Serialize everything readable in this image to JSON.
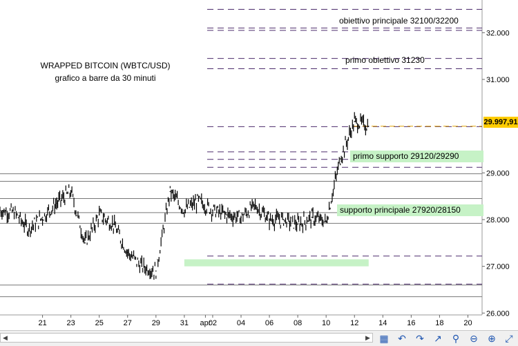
{
  "chart_title": {
    "line1": "WRAPPED BITCOIN (WBTC/USD)",
    "line2": "grafico a barre da 30 minuti"
  },
  "annotations": {
    "target_main": "obiettivo principale 32100/32200",
    "target_first": "primo obiettivo 31230",
    "support_first": "primo supporto 29120/29290",
    "support_main": "supporto principale 27920/28150"
  },
  "last_price_label": "29.997,91",
  "colors": {
    "price_bars": "#000000",
    "dashed_levels": "#4b2a6b",
    "support_highlight": "#c6f2c6",
    "last_price_badge": "#ffcc00",
    "last_price_line": "#e0a000"
  },
  "chart_data": {
    "type": "bar",
    "title": "WRAPPED BITCOIN (WBTC/USD)",
    "subtitle": "grafico a barre da 30 minuti",
    "y_axis": {
      "ticks": [
        "26.000",
        "27.000",
        "28.000",
        "29.000",
        "31.000",
        "32.000"
      ],
      "tick_values": [
        26000,
        27000,
        28000,
        29000,
        31000,
        32000
      ],
      "range": [
        25960,
        32700
      ]
    },
    "x_axis": {
      "tick_labels": [
        "21",
        "23",
        "25",
        "27",
        "29",
        "31",
        "apr",
        "02",
        "04",
        "06",
        "08",
        "10",
        "12",
        "14",
        "16",
        "18",
        "20"
      ],
      "date_range": [
        "2023-03-18",
        "2023-04-21"
      ]
    },
    "last_price": 29997.91,
    "series": [
      {
        "values": [
          {
            "x": "2023-03-18",
            "y": 28200
          },
          {
            "x": "2023-03-19",
            "y": 28150
          },
          {
            "x": "2023-03-20",
            "y": 27800
          },
          {
            "x": "2023-03-21",
            "y": 28050
          },
          {
            "x": "2023-03-22",
            "y": 28350
          },
          {
            "x": "2023-03-23",
            "y": 28600
          },
          {
            "x": "2023-03-24",
            "y": 27500
          },
          {
            "x": "2023-03-25",
            "y": 28100
          },
          {
            "x": "2023-03-26",
            "y": 27900
          },
          {
            "x": "2023-03-27",
            "y": 27300
          },
          {
            "x": "2023-03-28",
            "y": 27000
          },
          {
            "x": "2023-03-29",
            "y": 26900
          },
          {
            "x": "2023-03-30",
            "y": 28600
          },
          {
            "x": "2023-03-31",
            "y": 28200
          },
          {
            "x": "2023-04-01",
            "y": 28400
          },
          {
            "x": "2023-04-02",
            "y": 28200
          },
          {
            "x": "2023-04-03",
            "y": 28100
          },
          {
            "x": "2023-04-04",
            "y": 28050
          },
          {
            "x": "2023-04-05",
            "y": 28300
          },
          {
            "x": "2023-04-06",
            "y": 28000
          },
          {
            "x": "2023-04-07",
            "y": 28000
          },
          {
            "x": "2023-04-08",
            "y": 27900
          },
          {
            "x": "2023-04-09",
            "y": 28050
          },
          {
            "x": "2023-04-10",
            "y": 27950
          },
          {
            "x": "2023-04-11",
            "y": 29300
          },
          {
            "x": "2023-04-12",
            "y": 30100
          },
          {
            "x": "2023-04-13",
            "y": 29998
          }
        ]
      }
    ],
    "reference_levels": {
      "dashed": [
        32500,
        32100,
        32050,
        31450,
        31230,
        29990,
        29450,
        29290,
        29120,
        27220,
        26620
      ],
      "solid": [
        28980,
        28820,
        28450,
        28150,
        27920,
        26600,
        26350
      ]
    },
    "highlight_zones": [
      {
        "from": "2023-03-31",
        "to": "2023-04-13",
        "low": 27000,
        "high": 27150
      }
    ],
    "grid": false
  }
}
